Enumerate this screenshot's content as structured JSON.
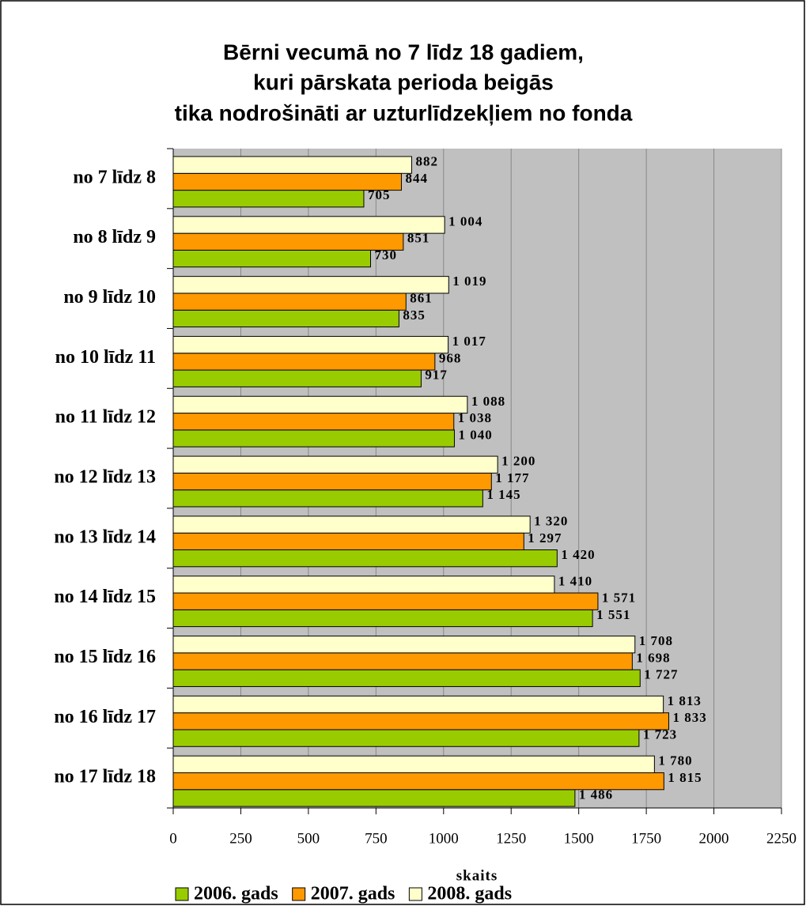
{
  "chart_data": {
    "type": "bar",
    "orientation": "horizontal",
    "title": [
      "Bērni vecumā no 7 līdz 18 gadiem,",
      "kuri pārskata perioda beigās",
      "tika nodrošināti ar uzturlīdzekļiem no fonda"
    ],
    "categories": [
      "no 7 līdz 8",
      "no 8 līdz 9",
      "no 9 līdz 10",
      "no 10 līdz 11",
      "no 11 līdz 12",
      "no 12 līdz 13",
      "no 13 līdz 14",
      "no 14 līdz 15",
      "no 15 līdz 16",
      "no 16 līdz 17",
      "no 17 līdz 18"
    ],
    "series": [
      {
        "name": "2006. gads",
        "color": "#99cc00",
        "values": [
          705,
          730,
          835,
          917,
          1040,
          1145,
          1420,
          1551,
          1727,
          1723,
          1486
        ],
        "value_labels": [
          "705",
          "730",
          "835",
          "917",
          "1 040",
          "1 145",
          "1 420",
          "1 551",
          "1 727",
          "1 723",
          "1 486"
        ]
      },
      {
        "name": "2007. gads",
        "color": "#ff9900",
        "values": [
          844,
          851,
          861,
          968,
          1038,
          1177,
          1297,
          1571,
          1698,
          1833,
          1815
        ],
        "value_labels": [
          "844",
          "851",
          "861",
          "968",
          "1 038",
          "1 177",
          "1 297",
          "1 571",
          "1 698",
          "1 833",
          "1 815"
        ]
      },
      {
        "name": "2008. gads",
        "color": "#ffffcc",
        "values": [
          882,
          1004,
          1019,
          1017,
          1088,
          1200,
          1320,
          1410,
          1708,
          1813,
          1780
        ],
        "value_labels": [
          "882",
          "1 004",
          "1 019",
          "1 017",
          "1 088",
          "1 200",
          "1 320",
          "1 410",
          "1 708",
          "1 813",
          "1 780"
        ]
      }
    ],
    "xlabel": "skaits",
    "xlim": [
      0,
      2250
    ],
    "xticks": [
      0,
      250,
      500,
      750,
      1000,
      1250,
      1500,
      1750,
      2000,
      2250
    ],
    "grid": true,
    "legend": "bottom"
  }
}
